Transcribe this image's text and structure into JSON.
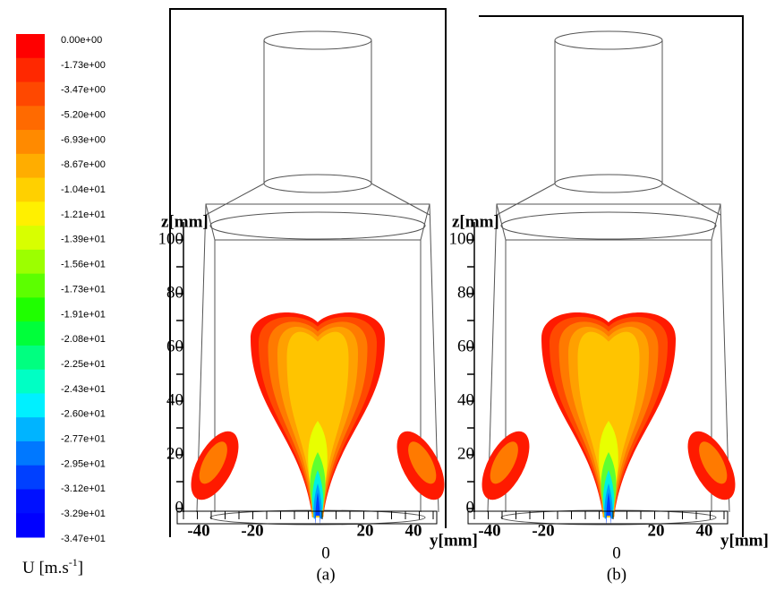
{
  "colorbar": {
    "labels": [
      "0.00e+00",
      "-1.73e+00",
      "-3.47e+00",
      "-5.20e+00",
      "-6.93e+00",
      "-8.67e+00",
      "-1.04e+01",
      "-1.21e+01",
      "-1.39e+01",
      "-1.56e+01",
      "-1.73e+01",
      "-1.91e+01",
      "-2.08e+01",
      "-2.25e+01",
      "-2.43e+01",
      "-2.60e+01",
      "-2.77e+01",
      "-2.95e+01",
      "-3.12e+01",
      "-3.29e+01",
      "-3.47e+01"
    ],
    "colors": [
      "#ff0000",
      "#ff2800",
      "#ff4800",
      "#ff6a00",
      "#ff8a00",
      "#ffad00",
      "#ffd000",
      "#fff000",
      "#d8ff00",
      "#9cff00",
      "#5cff00",
      "#1fff00",
      "#00ff3a",
      "#00ff80",
      "#00ffc4",
      "#00f0ff",
      "#00b4ff",
      "#0078ff",
      "#0040ff",
      "#0010ff",
      "#0000ff"
    ],
    "unit_base": "U [m.s",
    "unit_sup": "-1",
    "unit_end": "]"
  },
  "panels": [
    {
      "label": "(a)",
      "z_title": "z[mm]",
      "z_ticks": [
        "100",
        "80",
        "60",
        "40",
        "20",
        "0"
      ],
      "y_title": "y[mm]",
      "y_ticks": [
        "-40",
        "-20",
        "20",
        "40"
      ],
      "y_center": "0"
    },
    {
      "label": "(b)",
      "z_title": "z[mm]",
      "z_ticks": [
        "100",
        "80",
        "60",
        "40",
        "20",
        "0"
      ],
      "y_title": "y[mm]",
      "y_ticks": [
        "-40",
        "-20",
        "20",
        "40"
      ],
      "y_center": "0"
    }
  ]
}
